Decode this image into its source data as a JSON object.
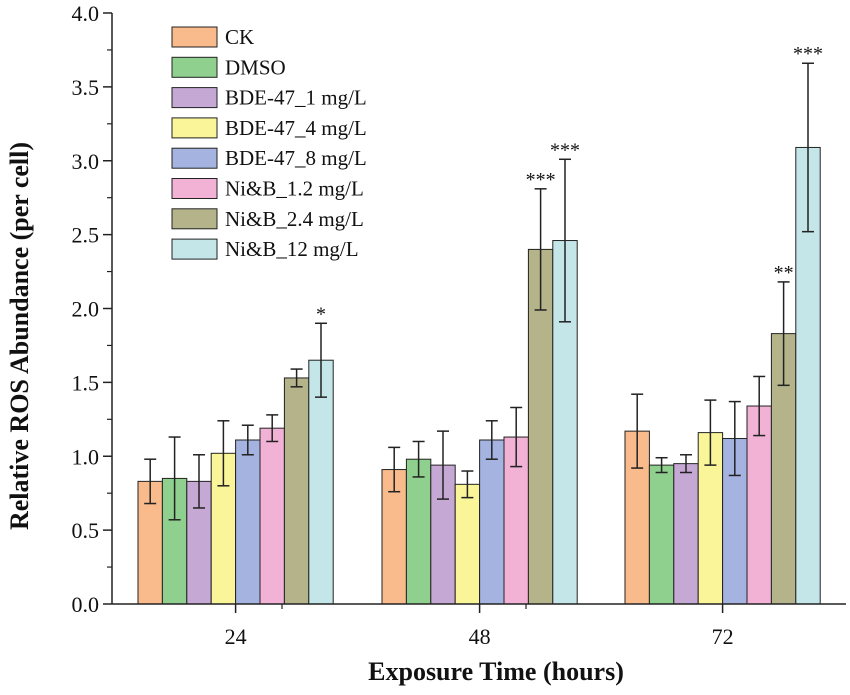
{
  "chart_data": {
    "type": "bar",
    "xlabel": "Exposure Time (hours)",
    "ylabel": "Relative ROS Abundance (per cell)",
    "ylim": [
      0,
      4.0
    ],
    "yticks": [
      "0.0",
      "0.5",
      "1.0",
      "1.5",
      "2.0",
      "2.5",
      "3.0",
      "3.5",
      "4.0"
    ],
    "categories": [
      "24",
      "48",
      "72"
    ],
    "legend_position": "top-left",
    "grid": false,
    "series": [
      {
        "name": "CK",
        "color": "#f9bb8c",
        "values": [
          0.83,
          0.91,
          1.17
        ],
        "errors": [
          0.15,
          0.15,
          0.25
        ],
        "sig": [
          "",
          "",
          ""
        ]
      },
      {
        "name": "DMSO",
        "color": "#8fd08e",
        "values": [
          0.85,
          0.98,
          0.94
        ],
        "errors": [
          0.28,
          0.12,
          0.05
        ],
        "sig": [
          "",
          "",
          ""
        ]
      },
      {
        "name": "BDE-47_1 mg/L",
        "color": "#c6a8d4",
        "values": [
          0.83,
          0.94,
          0.95
        ],
        "errors": [
          0.18,
          0.23,
          0.06
        ],
        "sig": [
          "",
          "",
          ""
        ]
      },
      {
        "name": "BDE-47_4 mg/L",
        "color": "#fbf59a",
        "values": [
          1.02,
          0.81,
          1.16
        ],
        "errors": [
          0.22,
          0.09,
          0.22
        ],
        "sig": [
          "",
          "",
          ""
        ]
      },
      {
        "name": "BDE-47_8 mg/L",
        "color": "#a4b3e0",
        "values": [
          1.11,
          1.11,
          1.12
        ],
        "errors": [
          0.1,
          0.13,
          0.25
        ],
        "sig": [
          "",
          "",
          ""
        ]
      },
      {
        "name": "Ni&B_1.2 mg/L",
        "color": "#f2b2d6",
        "values": [
          1.19,
          1.13,
          1.34
        ],
        "errors": [
          0.09,
          0.2,
          0.2
        ],
        "sig": [
          "",
          "",
          ""
        ]
      },
      {
        "name": "Ni&B_2.4 mg/L",
        "color": "#b4b38a",
        "values": [
          1.53,
          2.4,
          1.83
        ],
        "errors": [
          0.06,
          0.41,
          0.35
        ],
        "sig": [
          "",
          "***",
          "**"
        ]
      },
      {
        "name": "Ni&B_12 mg/L",
        "color": "#c4e6e9",
        "values": [
          1.65,
          2.46,
          3.09
        ],
        "errors": [
          0.25,
          0.55,
          0.57
        ],
        "sig": [
          "*",
          "***",
          "***"
        ]
      }
    ]
  }
}
